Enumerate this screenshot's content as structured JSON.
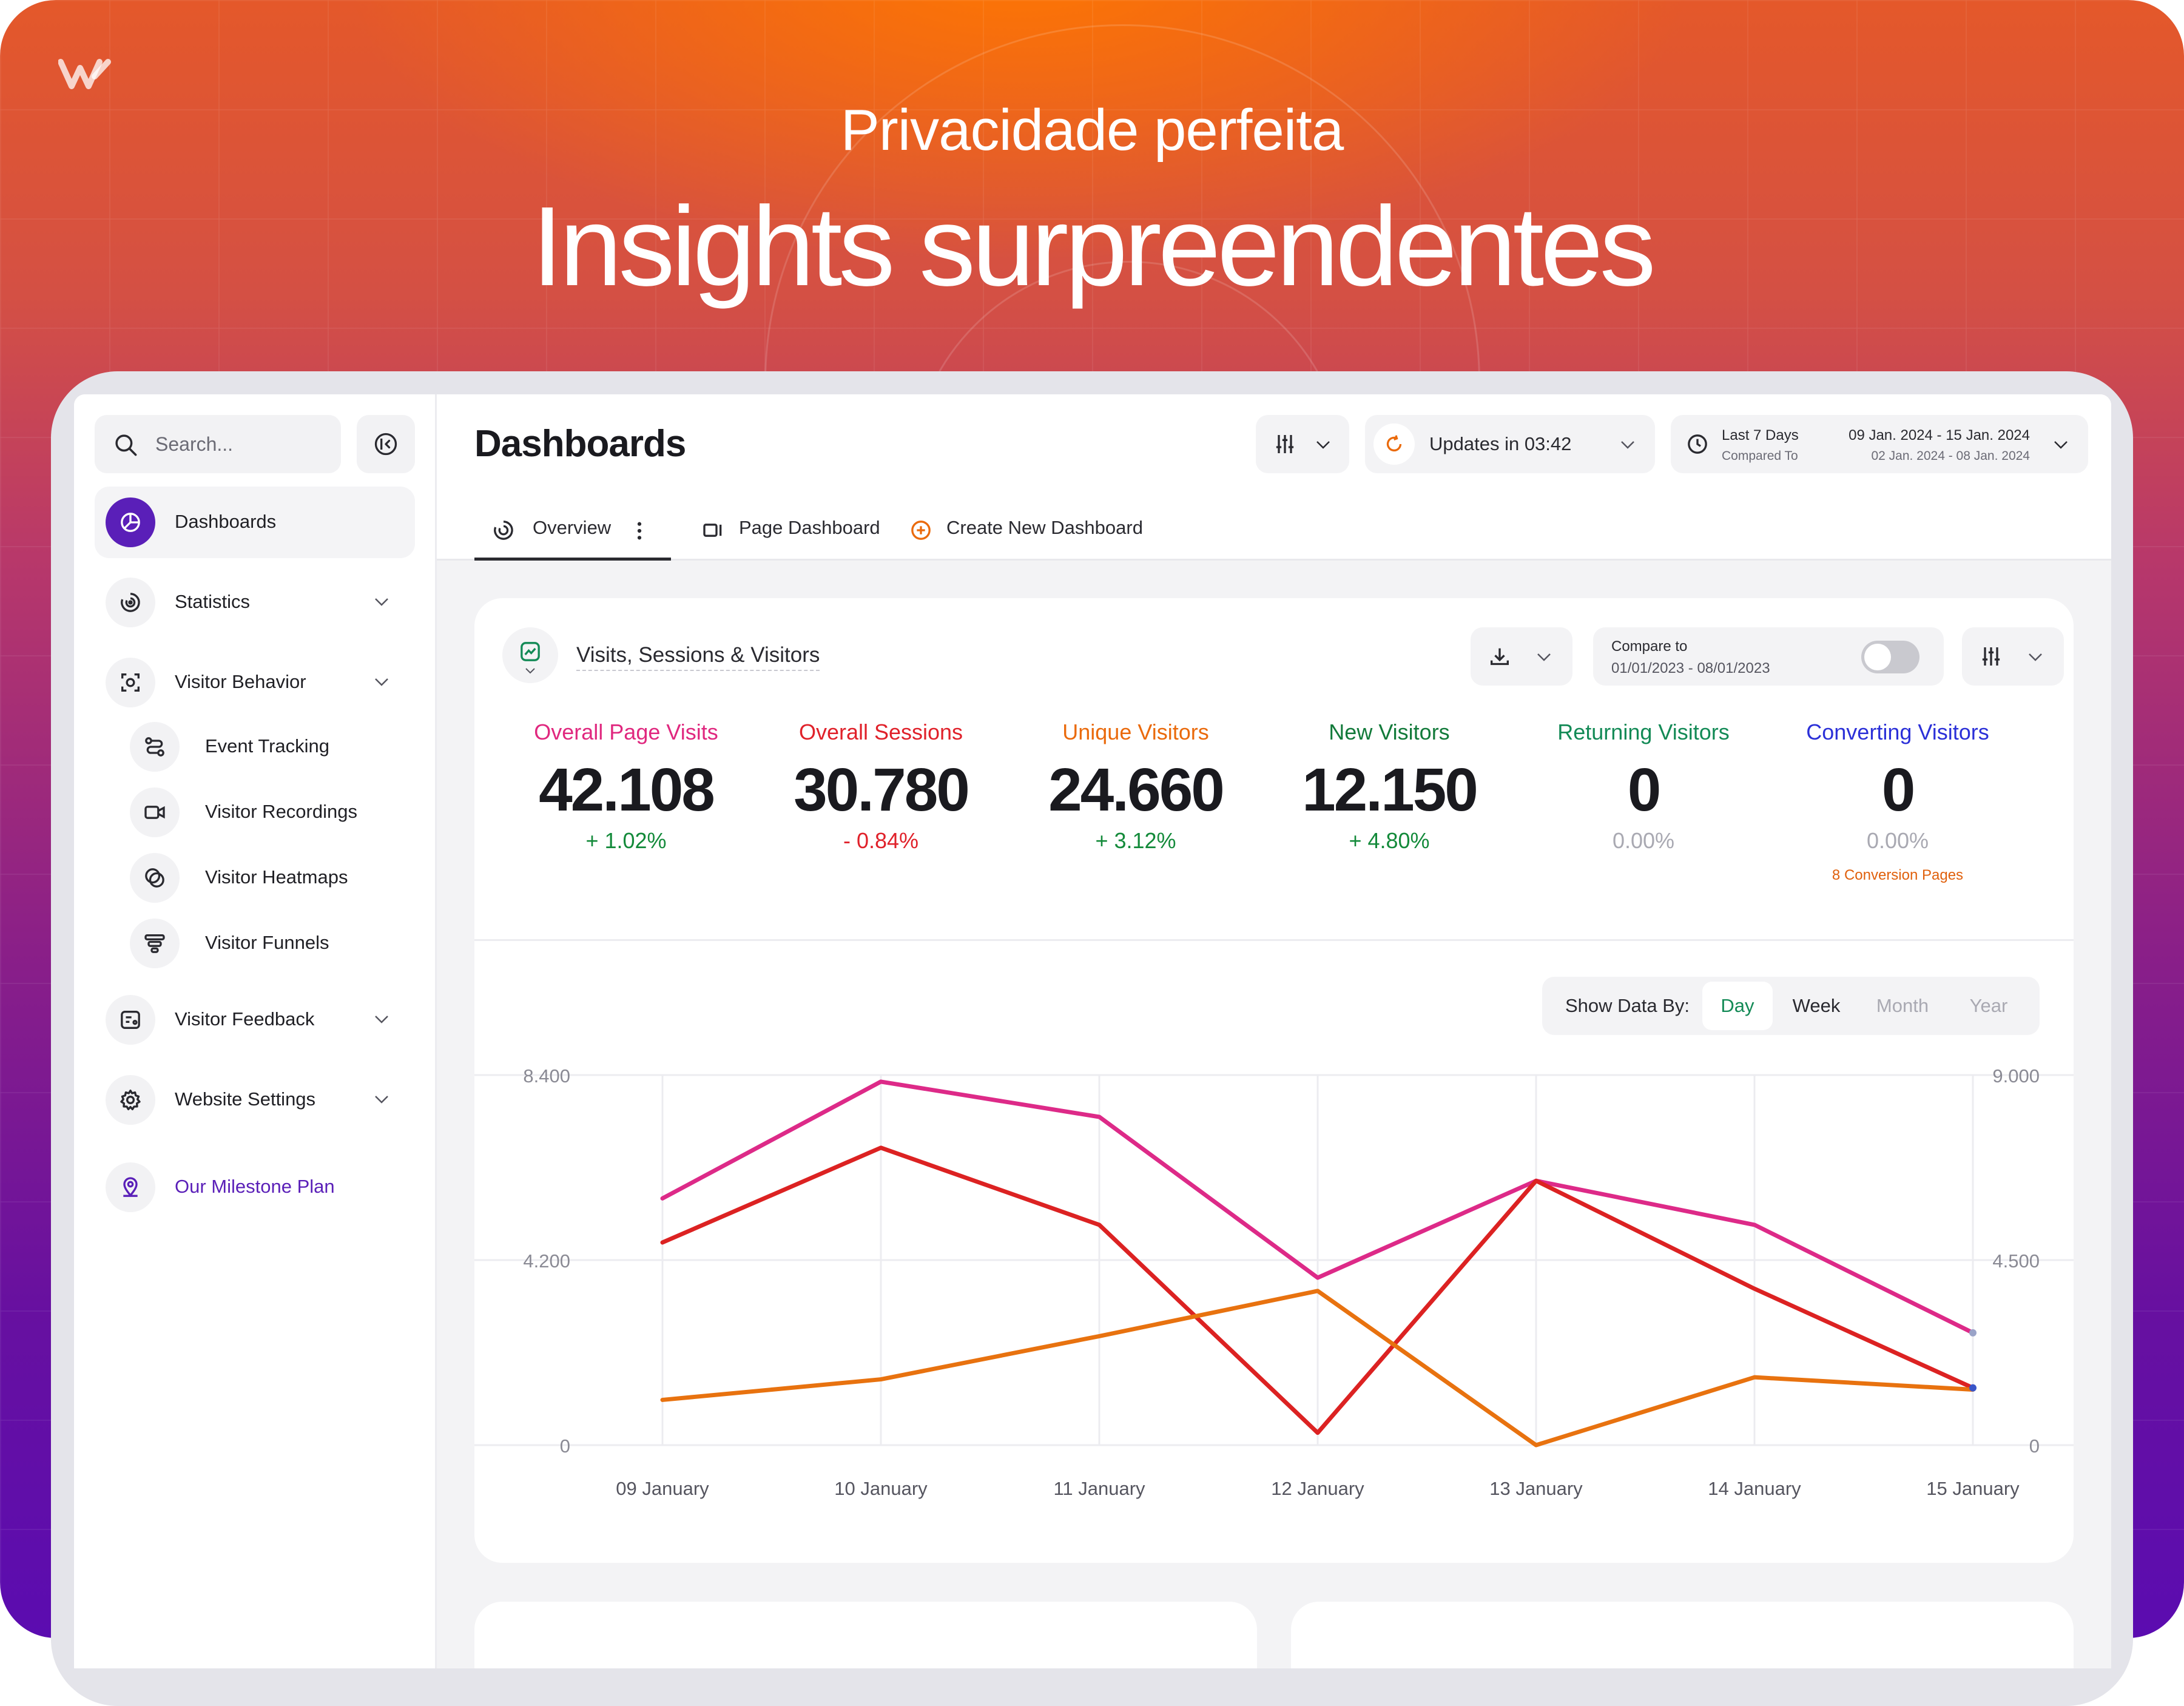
{
  "hero": {
    "subtitle": "Privacidade perfeita",
    "title": "Insights surpreendentes"
  },
  "sidebar": {
    "search_placeholder": "Search...",
    "items": [
      {
        "label": "Dashboards",
        "icon": "pie-chart-icon",
        "active": true
      },
      {
        "label": "Statistics",
        "icon": "statistics-icon"
      },
      {
        "label": "Visitor Behavior",
        "icon": "visitor-behavior-icon"
      },
      {
        "label": "Event Tracking",
        "icon": "event-tracking-icon"
      },
      {
        "label": "Visitor Recordings",
        "icon": "video-icon"
      },
      {
        "label": "Visitor Heatmaps",
        "icon": "heatmap-icon"
      },
      {
        "label": "Visitor Funnels",
        "icon": "funnel-icon"
      },
      {
        "label": "Visitor Feedback",
        "icon": "feedback-icon"
      },
      {
        "label": "Website Settings",
        "icon": "gear-icon"
      },
      {
        "label": "Our Milestone Plan",
        "icon": "map-pin-icon"
      }
    ]
  },
  "topbar": {
    "title": "Dashboards",
    "update_label": "Updates in 03:42",
    "date_range_label": "Last 7 Days",
    "compared_to_label": "Compared To",
    "date_range": "09 Jan. 2024 - 15 Jan. 2024",
    "compare_range": "02 Jan. 2024 - 08 Jan. 2024"
  },
  "tabs": [
    {
      "label": "Overview",
      "active": true
    },
    {
      "label": "Page Dashboard"
    },
    {
      "label": "Create New Dashboard"
    }
  ],
  "card": {
    "title": "Visits, Sessions & Visitors",
    "compare_label": "Compare to",
    "compare_range": "01/01/2023 - 08/01/2023",
    "compare_enabled": false
  },
  "metrics": [
    {
      "label": "Overall Page Visits",
      "value": "42.108",
      "delta": "+ 1.02%",
      "color": "#e0287f",
      "delta_color": "#138a3a"
    },
    {
      "label": "Overall Sessions",
      "value": "30.780",
      "delta": "- 0.84%",
      "color": "#e0212a",
      "delta_color": "#e0212a"
    },
    {
      "label": "Unique Visitors",
      "value": "24.660",
      "delta": "+ 3.12%",
      "color": "#ea6a0c",
      "delta_color": "#138a3a"
    },
    {
      "label": "New Visitors",
      "value": "12.150",
      "delta": "+ 4.80%",
      "color": "#127a3a",
      "delta_color": "#138a3a"
    },
    {
      "label": "Returning Visitors",
      "value": "0",
      "delta": "0.00%",
      "color": "#138a56",
      "delta_color": "#a9a9b2"
    },
    {
      "label": "Converting Visitors",
      "value": "0",
      "delta": "0.00%",
      "color": "#2b30d8",
      "delta_color": "#a9a9b2",
      "extra": "8 Conversion Pages"
    }
  ],
  "show_data_by": {
    "label": "Show Data By:",
    "options": [
      "Day",
      "Week",
      "Month",
      "Year"
    ],
    "selected": "Day"
  },
  "chart_data": {
    "type": "line",
    "x": [
      "09 January",
      "10 January",
      "11 January",
      "12 January",
      "13 January",
      "14 January",
      "15 January"
    ],
    "y_left_ticks": [
      "8.400",
      "4.200",
      "0"
    ],
    "y_right_ticks": [
      "9.000",
      "4.500",
      "0"
    ],
    "ylim_left": [
      0,
      8400
    ],
    "ylim_right": [
      0,
      9000
    ],
    "grid": true,
    "series": [
      {
        "color": "#dd2a88",
        "axis": "left",
        "values": [
          5600,
          8250,
          7450,
          3800,
          6000,
          5000,
          2550
        ]
      },
      {
        "color": "#dc2222",
        "axis": "left",
        "values": [
          4600,
          6750,
          5000,
          280,
          6000,
          3550,
          1300
        ]
      },
      {
        "color": "#e8720f",
        "axis": "right",
        "values": [
          1100,
          1600,
          2650,
          3750,
          0,
          1650,
          1350
        ]
      }
    ]
  }
}
